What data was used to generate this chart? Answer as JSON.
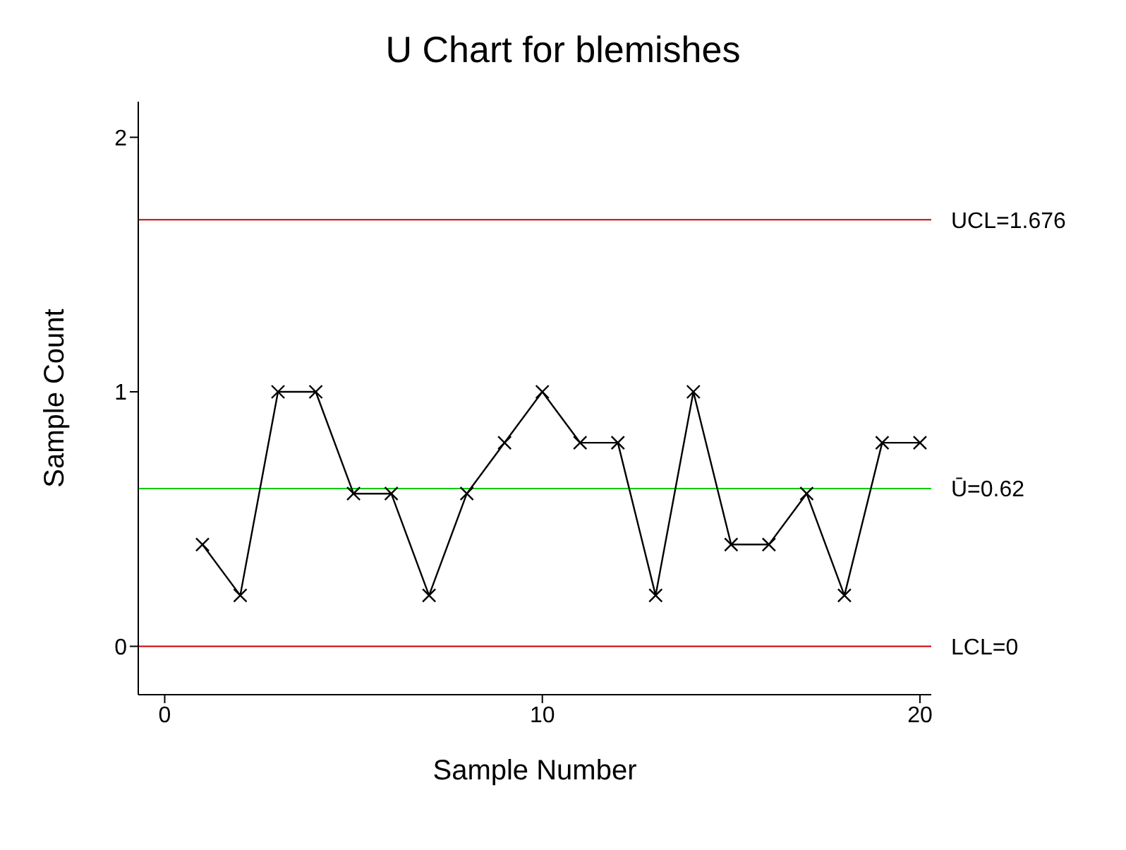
{
  "chart_data": {
    "type": "line",
    "title": "U Chart for blemishes",
    "xlabel": "Sample Number",
    "ylabel": "Sample Count",
    "x": [
      1,
      2,
      3,
      4,
      5,
      6,
      7,
      8,
      9,
      10,
      11,
      12,
      13,
      14,
      15,
      16,
      17,
      18,
      19,
      20
    ],
    "series": [
      {
        "color": "#000000",
        "values": [
          0.4,
          0.2,
          1,
          1,
          0.6,
          0.6,
          0.2,
          0.6,
          0.8,
          1,
          0.8,
          0.8,
          0.2,
          1,
          0.4,
          0.4,
          0.6,
          0.2,
          0.8,
          0.8
        ]
      }
    ],
    "xlim": [
      -0.7,
      20.3
    ],
    "xticks": [
      0,
      10,
      20
    ],
    "ylim": [
      -0.19,
      2.14
    ],
    "yticks": [
      0,
      1,
      2
    ],
    "ref_lines": [
      {
        "axis": "y",
        "value": 1.676,
        "label": "UCL=1.676",
        "color": "#cc0000"
      },
      {
        "axis": "y",
        "value": 0.62,
        "label": "Ū=0.62",
        "color": "#00cc00"
      },
      {
        "axis": "y",
        "value": 0,
        "label": "LCL=0",
        "color": "#cc0000"
      }
    ],
    "marker": "cross",
    "grid": false
  }
}
